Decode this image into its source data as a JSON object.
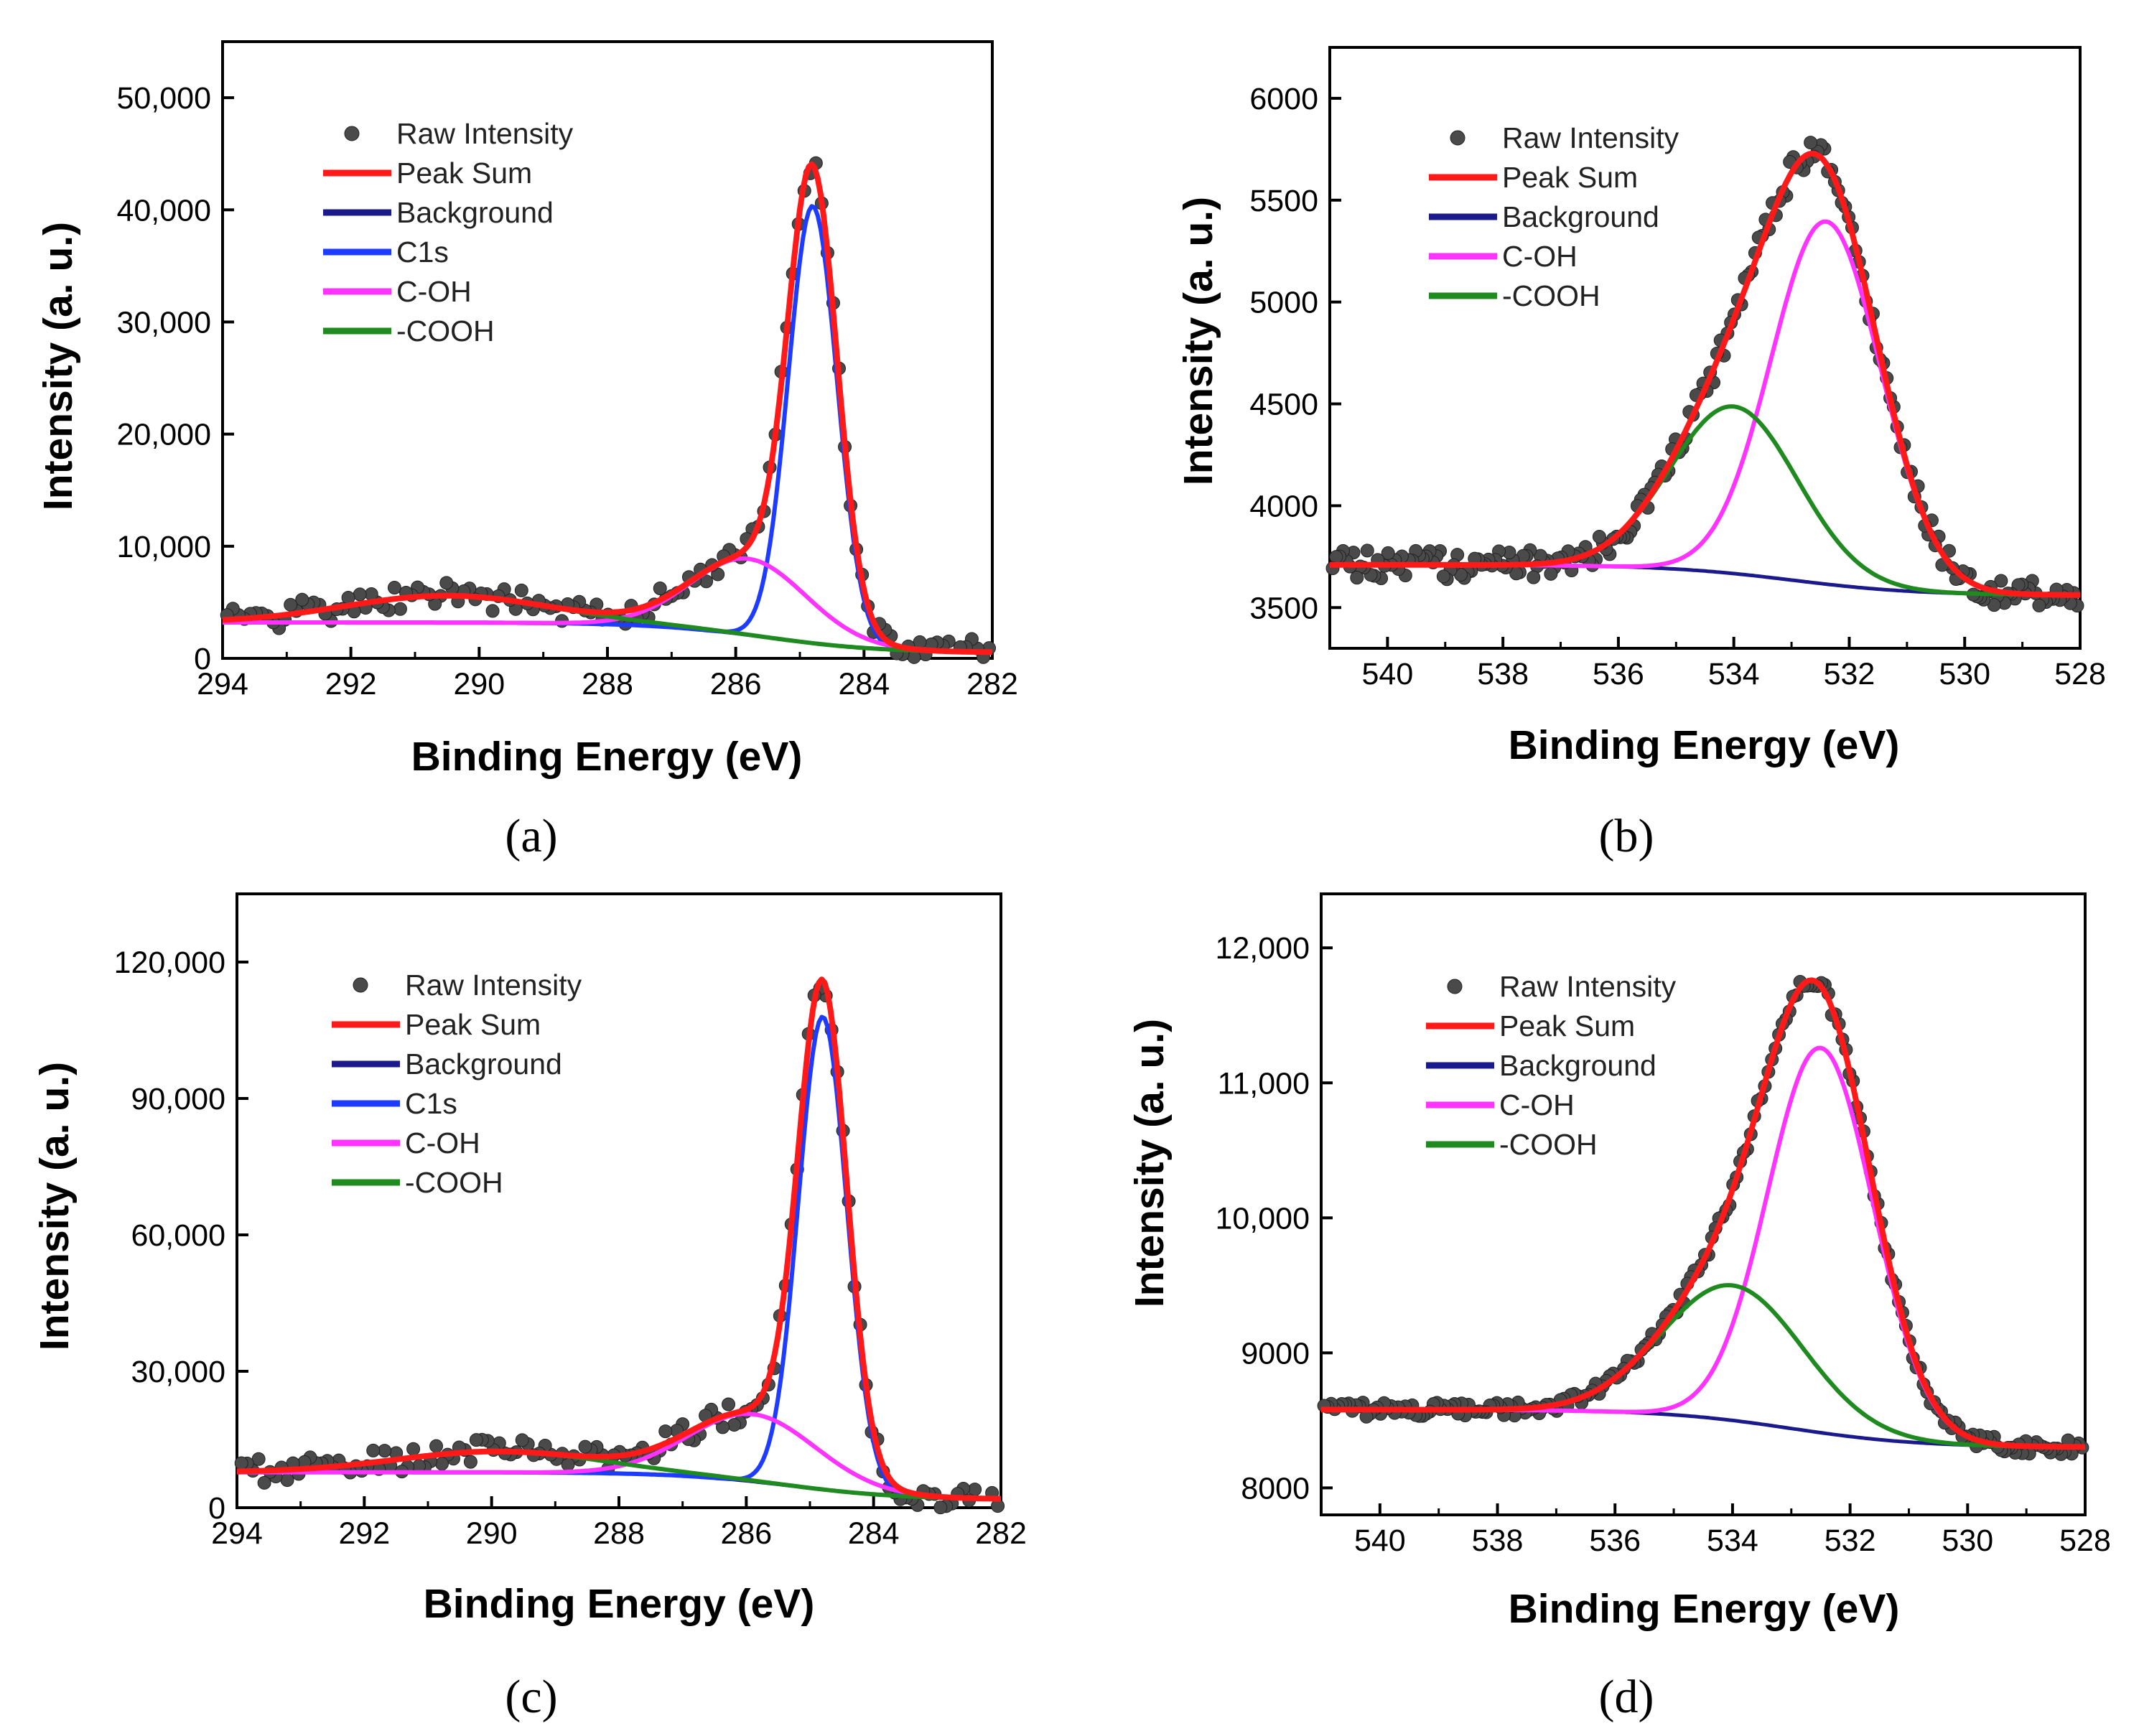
{
  "figure": {
    "legend_labels": [
      "Raw Intensity",
      "Peak Sum",
      "Background",
      "C1s",
      "C-OH",
      "-COOH"
    ],
    "colors": {
      "raw": "#4a4a4a",
      "Peak Sum": "#ff1a1a",
      "Background": "#1a1a8c",
      "C1s": "#1e3cff",
      "C-OH": "#ff33ff",
      "-COOH": "#1f8a1f"
    }
  },
  "chart_data": [
    {
      "panel": "(a)",
      "type": "line",
      "xlabel": "Binding Energy (eV)",
      "ylabel": "Intensity (a. u.)",
      "xlim": [
        294,
        282
      ],
      "ylim": [
        0,
        55000
      ],
      "xticks": [
        294,
        292,
        290,
        288,
        286,
        284,
        282
      ],
      "yticks": [
        0,
        10000,
        20000,
        30000,
        40000,
        50000
      ],
      "ytick_labels": [
        "0",
        "10,000",
        "20,000",
        "30,000",
        "40,000",
        "50,000"
      ],
      "legend": [
        "Raw Intensity",
        "Peak Sum",
        "Background",
        "C1s",
        "C-OH",
        "-COOH"
      ],
      "background": {
        "start": 3200,
        "end": 500,
        "center": 285.5,
        "width": 0.9
      },
      "components": [
        {
          "name": "C1s",
          "center": 284.8,
          "amplitude": 39000,
          "sigma": 0.38
        },
        {
          "name": "C-OH",
          "center": 285.8,
          "amplitude": 6800,
          "sigma": 0.9
        },
        {
          "name": "-COOH",
          "center": 290.5,
          "amplitude": 2400,
          "sigma": 1.6
        }
      ],
      "raw_noise": 0.035,
      "raw_step": 0.09
    },
    {
      "panel": "(b)",
      "type": "line",
      "xlabel": "Binding Energy (eV)",
      "ylabel": "Intensity (a. u.)",
      "xlim": [
        541,
        528
      ],
      "ylim": [
        3300,
        6250
      ],
      "xticks": [
        540,
        538,
        536,
        534,
        532,
        530,
        528
      ],
      "yticks": [
        3500,
        4000,
        4500,
        5000,
        5500,
        6000
      ],
      "ytick_labels": [
        "3500",
        "4000",
        "4500",
        "5000",
        "5500",
        "6000"
      ],
      "legend": [
        "Raw Intensity",
        "Peak Sum",
        "Background",
        "C-OH",
        "-COOH"
      ],
      "background": {
        "start": 3710,
        "end": 3560,
        "center": 533.0,
        "width": 1.1
      },
      "components": [
        {
          "name": "C-OH",
          "center": 532.4,
          "amplitude": 1780,
          "sigma": 0.95
        },
        {
          "name": "-COOH",
          "center": 534.0,
          "amplitude": 820,
          "sigma": 1.1
        }
      ],
      "raw_noise": 0.04,
      "raw_step": 0.06
    },
    {
      "panel": "(c)",
      "type": "line",
      "xlabel": "Binding Energy (eV)",
      "ylabel": "Intensity (a. u.)",
      "xlim": [
        294,
        282
      ],
      "ylim": [
        0,
        135000
      ],
      "xticks": [
        294,
        292,
        290,
        288,
        286,
        284,
        282
      ],
      "yticks": [
        0,
        30000,
        60000,
        90000,
        120000
      ],
      "ytick_labels": [
        "0",
        "30,000",
        "60,000",
        "90,000",
        "120,000"
      ],
      "legend": [
        "Raw Intensity",
        "Peak Sum",
        "Background",
        "C1s",
        "C-OH",
        "-COOH"
      ],
      "background": {
        "start": 7800,
        "end": 1800,
        "center": 285.3,
        "width": 0.9
      },
      "components": [
        {
          "name": "C1s",
          "center": 284.8,
          "amplitude": 104000,
          "sigma": 0.38
        },
        {
          "name": "C-OH",
          "center": 285.9,
          "amplitude": 14800,
          "sigma": 1.0
        },
        {
          "name": "-COOH",
          "center": 289.9,
          "amplitude": 4600,
          "sigma": 1.6
        }
      ],
      "raw_noise": 0.035,
      "raw_step": 0.09
    },
    {
      "panel": "(d)",
      "type": "line",
      "xlabel": "Binding Energy (eV)",
      "ylabel": "Intensity (a. u.)",
      "xlim": [
        541,
        528
      ],
      "ylim": [
        7800,
        12400
      ],
      "xticks": [
        540,
        538,
        536,
        534,
        532,
        530,
        528
      ],
      "yticks": [
        8000,
        9000,
        10000,
        11000,
        12000
      ],
      "ytick_labels": [
        "8000",
        "9000",
        "10,000",
        "11,000",
        "12,000"
      ],
      "legend": [
        "Raw Intensity",
        "Peak Sum",
        "Background",
        "C-OH",
        "-COOH"
      ],
      "background": {
        "start": 8580,
        "end": 8300,
        "center": 533.0,
        "width": 1.1
      },
      "components": [
        {
          "name": "C-OH",
          "center": 532.5,
          "amplitude": 2850,
          "sigma": 0.9
        },
        {
          "name": "-COOH",
          "center": 534.0,
          "amplitude": 1000,
          "sigma": 1.2
        }
      ],
      "raw_noise": 0.02,
      "raw_step": 0.06
    }
  ]
}
